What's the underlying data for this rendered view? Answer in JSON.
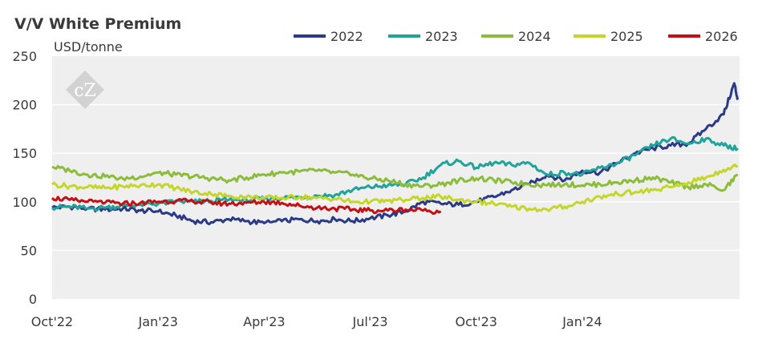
{
  "chart_data": {
    "type": "line",
    "title": "V/V White Premium",
    "ylabel": "USD/tonne",
    "xlabel": "",
    "ylim": [
      0,
      250
    ],
    "yticks": [
      0,
      50,
      100,
      150,
      200,
      250
    ],
    "x_ticks": [
      "Oct'22",
      "Jan'23",
      "Apr'23",
      "Jul'23",
      "Oct'23",
      "Jan'24"
    ],
    "x_unit": "month index from Oct'22",
    "grid": true,
    "legend_position": "top",
    "series": [
      {
        "name": "2022",
        "color": "#2b3a86",
        "points": [
          [
            0,
            94
          ],
          [
            0.5,
            95
          ],
          [
            1,
            93
          ],
          [
            1.5,
            92
          ],
          [
            2,
            93
          ],
          [
            2.5,
            91
          ],
          [
            3,
            90
          ],
          [
            3.5,
            86
          ],
          [
            4,
            80
          ],
          [
            4.5,
            79
          ],
          [
            5,
            82
          ],
          [
            5.5,
            80
          ],
          [
            6,
            78
          ],
          [
            6.5,
            80
          ],
          [
            7,
            82
          ],
          [
            7.5,
            80
          ],
          [
            8,
            82
          ],
          [
            8.5,
            80
          ],
          [
            9,
            83
          ],
          [
            9.5,
            86
          ],
          [
            10,
            90
          ],
          [
            10.5,
            100
          ],
          [
            11,
            98
          ],
          [
            11.5,
            97
          ],
          [
            12,
            100
          ],
          [
            12.5,
            105
          ],
          [
            13,
            112
          ],
          [
            13.5,
            118
          ],
          [
            14,
            128
          ],
          [
            14.5,
            122
          ],
          [
            15,
            132
          ],
          [
            15.5,
            130
          ],
          [
            16,
            140
          ],
          [
            16.5,
            150
          ],
          [
            17,
            155
          ],
          [
            17.5,
            158
          ],
          [
            18,
            160
          ],
          [
            18.5,
            175
          ],
          [
            19,
            190
          ],
          [
            19.3,
            222
          ],
          [
            19.4,
            205
          ]
        ]
      },
      {
        "name": "2023",
        "color": "#1fa39a",
        "points": [
          [
            0,
            94
          ],
          [
            0.5,
            95
          ],
          [
            1,
            93
          ],
          [
            1.5,
            94
          ],
          [
            2,
            96
          ],
          [
            2.5,
            97
          ],
          [
            3,
            98
          ],
          [
            3.5,
            100
          ],
          [
            4,
            100
          ],
          [
            4.5,
            101
          ],
          [
            5,
            102
          ],
          [
            5.5,
            102
          ],
          [
            6,
            103
          ],
          [
            6.5,
            104
          ],
          [
            7,
            105
          ],
          [
            7.5,
            106
          ],
          [
            8,
            107
          ],
          [
            8.5,
            112
          ],
          [
            9,
            115
          ],
          [
            9.5,
            117
          ],
          [
            10,
            118
          ],
          [
            10.5,
            125
          ],
          [
            11,
            138
          ],
          [
            11.5,
            142
          ],
          [
            12,
            135
          ],
          [
            12.5,
            140
          ],
          [
            13,
            138
          ],
          [
            13.5,
            140
          ],
          [
            14,
            128
          ],
          [
            14.5,
            130
          ],
          [
            15,
            128
          ],
          [
            15.5,
            135
          ],
          [
            16,
            140
          ],
          [
            16.5,
            148
          ],
          [
            17,
            158
          ],
          [
            17.5,
            165
          ],
          [
            18,
            160
          ],
          [
            18.5,
            165
          ],
          [
            19,
            158
          ],
          [
            19.4,
            155
          ]
        ]
      },
      {
        "name": "2024",
        "color": "#8cbd3a",
        "points": [
          [
            0,
            136
          ],
          [
            0.5,
            132
          ],
          [
            1,
            128
          ],
          [
            1.5,
            126
          ],
          [
            2,
            124
          ],
          [
            2.5,
            126
          ],
          [
            3,
            130
          ],
          [
            3.5,
            128
          ],
          [
            4,
            126
          ],
          [
            4.5,
            124
          ],
          [
            5,
            122
          ],
          [
            5.5,
            125
          ],
          [
            6,
            128
          ],
          [
            6.5,
            130
          ],
          [
            7,
            131
          ],
          [
            7.5,
            132
          ],
          [
            8,
            130
          ],
          [
            8.5,
            128
          ],
          [
            9,
            124
          ],
          [
            9.5,
            122
          ],
          [
            10,
            118
          ],
          [
            10.5,
            116
          ],
          [
            11,
            118
          ],
          [
            11.5,
            122
          ],
          [
            12,
            124
          ],
          [
            12.5,
            122
          ],
          [
            13,
            120
          ],
          [
            13.5,
            118
          ],
          [
            14,
            117
          ],
          [
            14.5,
            118
          ],
          [
            15,
            117
          ],
          [
            15.5,
            118
          ],
          [
            16,
            120
          ],
          [
            16.5,
            122
          ],
          [
            17,
            125
          ],
          [
            17.5,
            120
          ],
          [
            18,
            115
          ],
          [
            18.5,
            118
          ],
          [
            19,
            112
          ],
          [
            19.4,
            128
          ]
        ]
      },
      {
        "name": "2025",
        "color": "#c5d62a",
        "points": [
          [
            0,
            118
          ],
          [
            0.5,
            116
          ],
          [
            1,
            115
          ],
          [
            1.5,
            114
          ],
          [
            2,
            116
          ],
          [
            2.5,
            117
          ],
          [
            3,
            118
          ],
          [
            3.5,
            114
          ],
          [
            4,
            110
          ],
          [
            4.5,
            108
          ],
          [
            5,
            106
          ],
          [
            5.5,
            105
          ],
          [
            6,
            104
          ],
          [
            6.5,
            104
          ],
          [
            7,
            105
          ],
          [
            7.5,
            104
          ],
          [
            8,
            103
          ],
          [
            8.5,
            100
          ],
          [
            9,
            100
          ],
          [
            9.5,
            101
          ],
          [
            10,
            102
          ],
          [
            10.5,
            104
          ],
          [
            11,
            105
          ],
          [
            11.5,
            102
          ],
          [
            12,
            100
          ],
          [
            12.5,
            98
          ],
          [
            13,
            95
          ],
          [
            13.5,
            93
          ],
          [
            14,
            92
          ],
          [
            14.5,
            95
          ],
          [
            15,
            100
          ],
          [
            15.5,
            105
          ],
          [
            16,
            108
          ],
          [
            16.5,
            110
          ],
          [
            17,
            112
          ],
          [
            17.5,
            115
          ],
          [
            18,
            120
          ],
          [
            18.5,
            125
          ],
          [
            19,
            133
          ],
          [
            19.4,
            137
          ]
        ]
      },
      {
        "name": "2026",
        "color": "#c40f14",
        "points": [
          [
            0,
            104
          ],
          [
            0.5,
            102
          ],
          [
            1,
            100
          ],
          [
            1.5,
            99
          ],
          [
            2,
            98
          ],
          [
            2.5,
            99
          ],
          [
            3,
            100
          ],
          [
            3.5,
            101
          ],
          [
            4,
            100
          ],
          [
            4.5,
            99
          ],
          [
            5,
            98
          ],
          [
            5.5,
            99
          ],
          [
            6,
            100
          ],
          [
            6.5,
            99
          ],
          [
            7,
            96
          ],
          [
            7.5,
            94
          ],
          [
            8,
            93
          ],
          [
            8.5,
            92
          ],
          [
            9,
            91
          ],
          [
            9.5,
            91
          ],
          [
            10,
            92
          ],
          [
            10.5,
            91
          ],
          [
            11,
            90
          ]
        ]
      }
    ]
  },
  "logo": {
    "text": "cZ"
  }
}
